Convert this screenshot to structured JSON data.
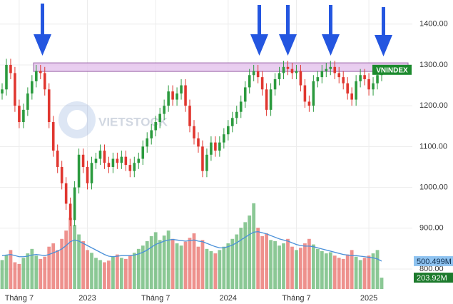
{
  "chart_data": {
    "type": "candlestick",
    "watermark": "VIETSTOCK",
    "series_label": "VNINDEX",
    "up_color": "#2b9a3e",
    "down_color": "#e0362f",
    "grid": true,
    "ylim": [
      751,
      1459
    ],
    "yticks": [
      {
        "value": 800,
        "label": "800.00"
      },
      {
        "value": 900,
        "label": "900.00"
      },
      {
        "value": 1000,
        "label": "1000.00"
      },
      {
        "value": 1100,
        "label": "1100.00"
      },
      {
        "value": 1200,
        "label": "1200.00"
      },
      {
        "value": 1300,
        "label": "1300.00"
      },
      {
        "value": 1400,
        "label": "1400.00"
      }
    ],
    "highlight_band": [
      1284,
      1305
    ],
    "categories": [
      null,
      null,
      null,
      null,
      "Tháng 7",
      null,
      null,
      null,
      null,
      null,
      null,
      null,
      null,
      null,
      null,
      null,
      null,
      null,
      null,
      null,
      "2023",
      null,
      null,
      null,
      null,
      null,
      null,
      null,
      null,
      null,
      null,
      null,
      null,
      null,
      null,
      null,
      "Tháng 7",
      null,
      null,
      null,
      null,
      null,
      null,
      null,
      null,
      null,
      null,
      null,
      null,
      null,
      null,
      null,
      null,
      "2024",
      null,
      null,
      null,
      null,
      null,
      null,
      null,
      null,
      null,
      null,
      null,
      null,
      null,
      null,
      null,
      "Tháng 7",
      null,
      null,
      null,
      null,
      null,
      null,
      null,
      null,
      null,
      null,
      null,
      null,
      null,
      null,
      null,
      null,
      "2025",
      null,
      null,
      null
    ],
    "open": [
      1230,
      1240,
      1300,
      1280,
      1200,
      1160,
      1190,
      1230,
      1260,
      1285,
      1280,
      1240,
      1160,
      1090,
      1050,
      1010,
      960,
      920,
      1000,
      1080,
      1050,
      1010,
      1060,
      1070,
      1090,
      1060,
      1050,
      1070,
      1060,
      1075,
      1055,
      1040,
      1060,
      1070,
      1100,
      1120,
      1140,
      1160,
      1180,
      1200,
      1235,
      1215,
      1230,
      1250,
      1200,
      1150,
      1120,
      1100,
      1040,
      1080,
      1110,
      1090,
      1110,
      1130,
      1150,
      1170,
      1185,
      1210,
      1245,
      1275,
      1285,
      1270,
      1240,
      1190,
      1240,
      1265,
      1280,
      1295,
      1290,
      1280,
      1285,
      1250,
      1210,
      1200,
      1260,
      1270,
      1285,
      1290,
      1295,
      1280,
      1270,
      1255,
      1230,
      1215,
      1260,
      1275,
      1265,
      1240,
      1255,
      1275
    ],
    "high": [
      1255,
      1315,
      1315,
      1295,
      1215,
      1205,
      1245,
      1275,
      1300,
      1300,
      1295,
      1255,
      1175,
      1105,
      1065,
      1025,
      975,
      1015,
      1095,
      1095,
      1065,
      1075,
      1085,
      1105,
      1105,
      1075,
      1085,
      1085,
      1090,
      1090,
      1070,
      1075,
      1085,
      1115,
      1135,
      1155,
      1175,
      1195,
      1215,
      1250,
      1250,
      1245,
      1265,
      1265,
      1215,
      1165,
      1135,
      1115,
      1095,
      1125,
      1125,
      1125,
      1145,
      1165,
      1185,
      1200,
      1225,
      1260,
      1290,
      1300,
      1300,
      1285,
      1255,
      1255,
      1280,
      1295,
      1310,
      1310,
      1305,
      1300,
      1300,
      1265,
      1225,
      1275,
      1285,
      1300,
      1305,
      1310,
      1310,
      1295,
      1285,
      1270,
      1245,
      1275,
      1290,
      1290,
      1280,
      1270,
      1290,
      1300
    ],
    "low": [
      1215,
      1225,
      1265,
      1185,
      1145,
      1145,
      1175,
      1215,
      1245,
      1265,
      1225,
      1145,
      1075,
      1035,
      995,
      945,
      905,
      905,
      985,
      1035,
      995,
      995,
      1045,
      1055,
      1045,
      1035,
      1035,
      1045,
      1045,
      1040,
      1025,
      1025,
      1045,
      1055,
      1085,
      1105,
      1125,
      1145,
      1165,
      1185,
      1200,
      1200,
      1215,
      1185,
      1135,
      1105,
      1085,
      1025,
      1025,
      1065,
      1075,
      1075,
      1095,
      1115,
      1135,
      1155,
      1170,
      1195,
      1230,
      1260,
      1255,
      1225,
      1175,
      1175,
      1225,
      1250,
      1265,
      1275,
      1265,
      1265,
      1235,
      1195,
      1185,
      1185,
      1245,
      1255,
      1270,
      1275,
      1265,
      1255,
      1240,
      1215,
      1200,
      1200,
      1245,
      1250,
      1225,
      1225,
      1240,
      1260
    ],
    "close": [
      1240,
      1300,
      1280,
      1200,
      1160,
      1190,
      1230,
      1260,
      1285,
      1280,
      1240,
      1160,
      1090,
      1050,
      1010,
      960,
      920,
      1000,
      1080,
      1050,
      1010,
      1060,
      1070,
      1090,
      1060,
      1050,
      1070,
      1060,
      1075,
      1055,
      1040,
      1060,
      1070,
      1100,
      1120,
      1140,
      1160,
      1180,
      1200,
      1235,
      1215,
      1230,
      1250,
      1200,
      1150,
      1120,
      1100,
      1040,
      1080,
      1110,
      1090,
      1110,
      1130,
      1150,
      1170,
      1185,
      1210,
      1245,
      1275,
      1285,
      1270,
      1240,
      1190,
      1240,
      1265,
      1280,
      1295,
      1290,
      1280,
      1285,
      1250,
      1210,
      1200,
      1260,
      1270,
      1285,
      1290,
      1295,
      1280,
      1270,
      1255,
      1230,
      1215,
      1260,
      1275,
      1265,
      1240,
      1255,
      1275,
      1288
    ],
    "volume": {
      "ylim": [
        0,
        5190
      ],
      "label_color": "#1c7a2c",
      "values": [
        520,
        610,
        700,
        480,
        450,
        560,
        640,
        720,
        600,
        540,
        580,
        760,
        820,
        700,
        900,
        1050,
        1280,
        1150,
        980,
        860,
        700,
        650,
        560,
        520,
        480,
        510,
        590,
        620,
        560,
        540,
        600,
        650,
        720,
        780,
        860,
        950,
        1020,
        880,
        960,
        1050,
        900,
        820,
        780,
        850,
        920,
        1000,
        760,
        880,
        720,
        680,
        640,
        700,
        760,
        820,
        900,
        980,
        1100,
        1200,
        1320,
        1540,
        1100,
        950,
        1000,
        880,
        860,
        780,
        820,
        900,
        760,
        700,
        740,
        820,
        900,
        800,
        720,
        680,
        640,
        660,
        600,
        560,
        540,
        620,
        700,
        580,
        520,
        560,
        600,
        640,
        700,
        203.92
      ],
      "value_labels": [
        null,
        null,
        null,
        null,
        null,
        null,
        null,
        null,
        null,
        null,
        null,
        null,
        null,
        null,
        null,
        null,
        null,
        null,
        null,
        null,
        null,
        null,
        null,
        null,
        null,
        null,
        null,
        null,
        null,
        null,
        null,
        null,
        null,
        null,
        null,
        null,
        null,
        null,
        null,
        null,
        null,
        null,
        null,
        null,
        null,
        null,
        null,
        null,
        null,
        null,
        null,
        null,
        null,
        null,
        null,
        null,
        null,
        null,
        null,
        null,
        null,
        null,
        null,
        null,
        null,
        null,
        null,
        null,
        null,
        null,
        null,
        null,
        null,
        null,
        null,
        null,
        null,
        null,
        null,
        null,
        null,
        null,
        null,
        null,
        null,
        null,
        null,
        null,
        null,
        "203.92M"
      ]
    },
    "volume_ma": {
      "color": "#4a90d9",
      "values": [
        600,
        610,
        620,
        600,
        580,
        580,
        590,
        610,
        620,
        610,
        600,
        620,
        650,
        680,
        720,
        780,
        850,
        880,
        860,
        820,
        780,
        740,
        700,
        660,
        620,
        590,
        580,
        590,
        600,
        600,
        600,
        610,
        630,
        660,
        700,
        750,
        800,
        830,
        860,
        880,
        890,
        880,
        870,
        860,
        870,
        880,
        860,
        850,
        820,
        790,
        760,
        740,
        740,
        760,
        790,
        830,
        880,
        930,
        980,
        1020,
        1030,
        1010,
        990,
        960,
        930,
        900,
        880,
        860,
        830,
        800,
        780,
        770,
        770,
        760,
        740,
        720,
        700,
        680,
        660,
        640,
        620,
        610,
        600,
        600,
        590,
        580,
        570,
        560,
        540,
        500.499
      ],
      "value_labels": [
        null,
        null,
        null,
        null,
        null,
        null,
        null,
        null,
        null,
        null,
        null,
        null,
        null,
        null,
        null,
        null,
        null,
        null,
        null,
        null,
        null,
        null,
        null,
        null,
        null,
        null,
        null,
        null,
        null,
        null,
        null,
        null,
        null,
        null,
        null,
        null,
        null,
        null,
        null,
        null,
        null,
        null,
        null,
        null,
        null,
        null,
        null,
        null,
        null,
        null,
        null,
        null,
        null,
        null,
        null,
        null,
        null,
        null,
        null,
        null,
        null,
        null,
        null,
        null,
        null,
        null,
        null,
        null,
        null,
        null,
        null,
        null,
        null,
        null,
        null,
        null,
        null,
        null,
        null,
        null,
        null,
        null,
        null,
        null,
        null,
        null,
        null,
        null,
        null,
        "500.499M"
      ]
    }
  }
}
